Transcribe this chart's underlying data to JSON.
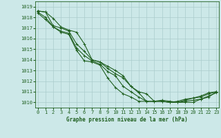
{
  "title": "Graphe pression niveau de la mer (hPa)",
  "ylim": [
    1009.5,
    1019.5
  ],
  "xlim": [
    -0.3,
    23.3
  ],
  "yticks": [
    1010,
    1011,
    1012,
    1013,
    1014,
    1015,
    1016,
    1017,
    1018,
    1019
  ],
  "xticks": [
    0,
    1,
    2,
    3,
    4,
    5,
    6,
    7,
    8,
    9,
    10,
    11,
    12,
    13,
    14,
    15,
    16,
    17,
    18,
    19,
    20,
    21,
    22,
    23
  ],
  "line_color": "#1f5f1f",
  "bg_color": "#cce8e8",
  "grid_color": "#aacccc",
  "lines": [
    [
      1018.6,
      1018.5,
      1017.9,
      1017.1,
      1016.8,
      1016.6,
      1015.5,
      1014.0,
      1013.8,
      1013.4,
      1013.0,
      1012.5,
      1011.5,
      1010.9,
      1010.1,
      1010.1,
      1010.2,
      1010.1,
      1010.0,
      1010.0,
      1010.0,
      1010.3,
      1010.5,
      1011.0
    ],
    [
      1018.6,
      1018.5,
      1017.2,
      1017.0,
      1016.7,
      1015.5,
      1014.8,
      1014.0,
      1013.8,
      1013.2,
      1012.7,
      1012.3,
      1011.5,
      1011.0,
      1010.8,
      1010.1,
      1010.1,
      1010.0,
      1010.1,
      1010.3,
      1010.4,
      1010.5,
      1010.8,
      1011.0
    ],
    [
      1018.5,
      1018.0,
      1017.1,
      1016.7,
      1016.5,
      1015.1,
      1014.4,
      1013.9,
      1013.6,
      1012.9,
      1012.5,
      1011.5,
      1011.0,
      1010.5,
      1010.1,
      1010.1,
      1010.1,
      1010.0,
      1010.0,
      1010.1,
      1010.2,
      1010.3,
      1010.6,
      1010.9
    ],
    [
      1018.4,
      1017.8,
      1017.1,
      1016.6,
      1016.4,
      1014.9,
      1013.9,
      1013.8,
      1013.5,
      1012.3,
      1011.4,
      1010.8,
      1010.5,
      1010.1,
      1010.1,
      1010.1,
      1010.1,
      1010.0,
      1010.0,
      1010.2,
      1010.4,
      1010.6,
      1010.9,
      1011.0
    ]
  ],
  "marker": "+",
  "markersize": 3.5,
  "linewidth": 0.8,
  "tick_fontsize": 5.0,
  "xlabel_fontsize": 5.5
}
